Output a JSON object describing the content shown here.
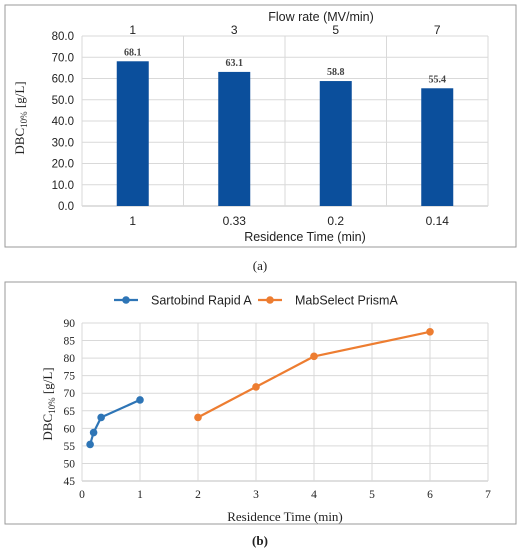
{
  "colors": {
    "bar": "#0b4f9c",
    "series_a": "#2e75b6",
    "series_b": "#ed7d31",
    "grid": "#d9d9d9",
    "axis": "#bfbfbf",
    "frame": "#9a9a9a"
  },
  "chart_data": [
    {
      "type": "bar",
      "caption": "(a)",
      "categories": [
        "1",
        "0.33",
        "0.2",
        "0.14"
      ],
      "values": [
        68.1,
        63.1,
        58.8,
        55.4
      ],
      "data_labels": [
        "68.1",
        "63.1",
        "58.8",
        "55.4"
      ],
      "secondary_categories": [
        "1",
        "3",
        "5",
        "7"
      ],
      "secondary_axis_label": "Flow rate (MV/min)",
      "xlabel": "Residence Time (min)",
      "ylabel_main": "DBC",
      "ylabel_sub": "10%",
      "ylabel_rest": " [g/L]",
      "ylim": [
        0,
        80
      ],
      "yticks": [
        "0.0",
        "10.0",
        "20.0",
        "30.0",
        "40.0",
        "50.0",
        "60.0",
        "70.0",
        "80.0"
      ],
      "grid": true
    },
    {
      "type": "line",
      "caption": "(b)",
      "xlabel": "Residence Time (min)",
      "ylabel_main": "DBC",
      "ylabel_sub": "10%",
      "ylabel_rest": " [g/L]",
      "xlim": [
        0,
        7
      ],
      "ylim": [
        45,
        90
      ],
      "xticks": [
        "0",
        "1",
        "2",
        "3",
        "4",
        "5",
        "6",
        "7"
      ],
      "yticks": [
        "45",
        "50",
        "55",
        "60",
        "65",
        "70",
        "75",
        "80",
        "85",
        "90"
      ],
      "legend_position": "top",
      "grid": true,
      "series": [
        {
          "name": "Sartobind Rapid A",
          "x": [
            0.14,
            0.2,
            0.33,
            1
          ],
          "y": [
            55.4,
            58.8,
            63.1,
            68.1
          ]
        },
        {
          "name": "MabSelect PrismA",
          "x": [
            2,
            3,
            4,
            6
          ],
          "y": [
            63.1,
            71.8,
            80.5,
            87.5
          ]
        }
      ]
    }
  ]
}
